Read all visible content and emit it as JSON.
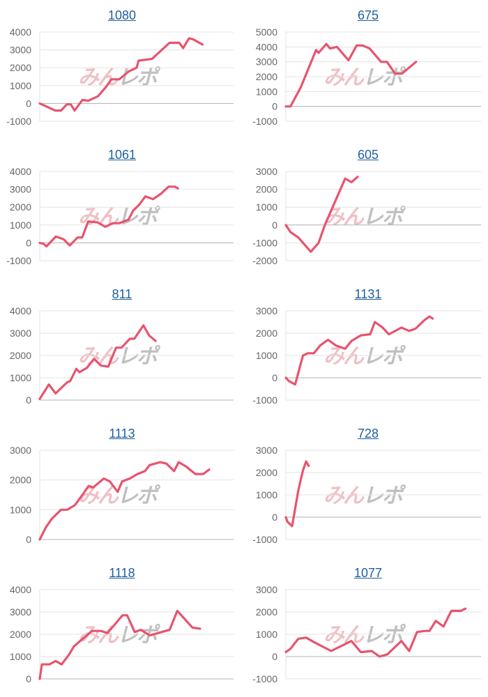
{
  "watermark": {
    "part1": "みん",
    "part2": "レポ"
  },
  "colors": {
    "line": "#e8536e",
    "title": "#1f5f9e",
    "grid": "#e3e3e3",
    "zero_line": "#b0b0b0",
    "tick_text": "#666666"
  },
  "chart_data": [
    {
      "type": "line",
      "title": "1080",
      "ylim": [
        -1000,
        4000
      ],
      "yticks": [
        "4000",
        "3000",
        "2000",
        "1000",
        "0",
        "-1000"
      ],
      "xlim": [
        0,
        100
      ],
      "x": [
        0,
        3,
        8,
        11,
        14,
        16,
        18,
        22,
        25,
        30,
        34,
        37,
        41,
        46,
        50,
        51,
        58,
        64,
        67,
        72,
        74,
        77,
        79,
        84
      ],
      "values": [
        0,
        -150,
        -400,
        -400,
        -50,
        -50,
        -400,
        200,
        150,
        400,
        900,
        1350,
        1350,
        1800,
        2000,
        2400,
        2500,
        3100,
        3400,
        3400,
        3100,
        3650,
        3600,
        3300
      ]
    },
    {
      "type": "line",
      "title": "675",
      "ylim": [
        -1000,
        5000
      ],
      "yticks": [
        "5000",
        "4000",
        "3000",
        "2000",
        "1000",
        "0",
        "-1000"
      ],
      "xlim": [
        0,
        100
      ],
      "x": [
        0,
        2.4,
        7.7,
        15.5,
        16.7,
        20.8,
        22.6,
        26.2,
        32.1,
        36.3,
        39.3,
        42.9,
        48.8,
        51.8,
        56,
        59.5,
        66.7
      ],
      "values": [
        0,
        0,
        1300,
        3800,
        3600,
        4200,
        3900,
        4000,
        3100,
        4100,
        4100,
        3900,
        3000,
        3000,
        2200,
        2200,
        3000
      ]
    },
    {
      "type": "line",
      "title": "1061",
      "ylim": [
        -1000,
        4000
      ],
      "yticks": [
        "4000",
        "3000",
        "2000",
        "1000",
        "0",
        "-1000"
      ],
      "xlim": [
        0,
        100
      ],
      "x": [
        0,
        1.9,
        3.5,
        8.3,
        12.3,
        15.5,
        19.5,
        21.9,
        25,
        29.8,
        33.8,
        37.8,
        41,
        45.8,
        48.2,
        51.4,
        54.5,
        58.5,
        62.5,
        66.5,
        69.7,
        71.3
      ],
      "values": [
        0,
        -50,
        -200,
        350,
        200,
        -150,
        300,
        300,
        1200,
        1150,
        900,
        1100,
        1100,
        1300,
        1800,
        2150,
        2600,
        2450,
        2750,
        3150,
        3150,
        3050
      ]
    },
    {
      "type": "line",
      "title": "605",
      "ylim": [
        -2000,
        3000
      ],
      "yticks": [
        "3000",
        "2000",
        "1000",
        "0",
        "-1000",
        "-2000"
      ],
      "xlim": [
        0,
        100
      ],
      "x": [
        0,
        2.4,
        6.4,
        12.8,
        16.8,
        20,
        30.4,
        33.6,
        36.8
      ],
      "values": [
        0,
        -400,
        -700,
        -1500,
        -1000,
        0,
        2600,
        2400,
        2700
      ]
    },
    {
      "type": "line",
      "title": "811",
      "ylim": [
        0,
        4000
      ],
      "yticks": [
        "4000",
        "3000",
        "2000",
        "1000",
        "0"
      ],
      "xlim": [
        0,
        100
      ],
      "x": [
        0,
        4.7,
        8.2,
        14.2,
        15.7,
        18.9,
        20.5,
        24.4,
        28,
        31.5,
        35.4,
        39.4,
        42.2,
        46.5,
        48.8,
        53.5,
        56.4,
        59.8
      ],
      "values": [
        50,
        700,
        300,
        800,
        850,
        1400,
        1250,
        1450,
        1850,
        1550,
        1500,
        2350,
        2350,
        2750,
        2750,
        3350,
        2900,
        2650
      ]
    },
    {
      "type": "line",
      "title": "1131",
      "ylim": [
        -1000,
        3000
      ],
      "yticks": [
        "3000",
        "2000",
        "1000",
        "0",
        "-1000"
      ],
      "xlim": [
        0,
        100
      ],
      "x": [
        0,
        1.6,
        4.8,
        8.8,
        11.2,
        14.4,
        17.6,
        21.6,
        25.6,
        30.4,
        33.6,
        38.4,
        43.2,
        45.6,
        49.6,
        52.8,
        59.2,
        63.2,
        66.4,
        71.2,
        73.6,
        75.2
      ],
      "values": [
        0,
        -150,
        -300,
        1000,
        1100,
        1100,
        1450,
        1700,
        1450,
        1300,
        1650,
        1900,
        1950,
        2500,
        2250,
        1950,
        2250,
        2100,
        2200,
        2600,
        2750,
        2650
      ]
    },
    {
      "type": "line",
      "title": "1113",
      "ylim": [
        0,
        3000
      ],
      "yticks": [
        "3000",
        "2000",
        "1000",
        "0"
      ],
      "xlim": [
        0,
        100
      ],
      "x": [
        0,
        3.1,
        6.3,
        11,
        14.2,
        18.1,
        22,
        25.2,
        27.6,
        33.1,
        36.2,
        40.2,
        42.5,
        46.5,
        50.4,
        54.3,
        56.7,
        62.2,
        65.4,
        69.3,
        71.7,
        75.6,
        80.3,
        84.3,
        87.4
      ],
      "values": [
        0,
        400,
        700,
        1000,
        1000,
        1150,
        1500,
        1800,
        1750,
        2050,
        1950,
        1600,
        1950,
        2050,
        2200,
        2300,
        2500,
        2600,
        2550,
        2300,
        2600,
        2450,
        2200,
        2200,
        2350
      ]
    },
    {
      "type": "line",
      "title": "728",
      "ylim": [
        -1000,
        3000
      ],
      "yticks": [
        "3000",
        "2000",
        "1000",
        "0",
        "-1000"
      ],
      "xlim": [
        0,
        100
      ],
      "x": [
        0,
        0.8,
        3.2,
        6.4,
        8.8,
        10.4,
        11.7
      ],
      "values": [
        0,
        -200,
        -400,
        1200,
        2100,
        2500,
        2300
      ]
    },
    {
      "type": "line",
      "title": "1118",
      "ylim": [
        0,
        4000
      ],
      "yticks": [
        "4000",
        "3000",
        "2000",
        "1000",
        "0"
      ],
      "xlim": [
        0,
        100
      ],
      "x": [
        0,
        1.1,
        5,
        8.2,
        11.3,
        15.2,
        17.6,
        21.5,
        27,
        31.7,
        34.9,
        38.8,
        42.7,
        45.1,
        49,
        52.1,
        56.8,
        67,
        71,
        74.1,
        78.8,
        82.7
      ],
      "values": [
        0,
        650,
        650,
        800,
        650,
        1100,
        1450,
        1750,
        2150,
        2150,
        2050,
        2450,
        2850,
        2850,
        2100,
        2200,
        1950,
        2200,
        3050,
        2750,
        2300,
        2250
      ]
    },
    {
      "type": "line",
      "title": "1077",
      "ylim": [
        -1000,
        3000
      ],
      "yticks": [
        "3000",
        "2000",
        "1000",
        "0",
        "-1000"
      ],
      "xlim": [
        0,
        100
      ],
      "x": [
        0,
        2.4,
        6.4,
        10.4,
        14.4,
        23.2,
        33.6,
        38.4,
        44,
        48,
        52,
        59.2,
        63.2,
        67.2,
        71.2,
        73.6,
        76.8,
        80.8,
        84.8,
        89.6,
        92
      ],
      "values": [
        200,
        350,
        800,
        850,
        650,
        250,
        700,
        200,
        250,
        0,
        100,
        700,
        250,
        1100,
        1150,
        1150,
        1600,
        1350,
        2050,
        2050,
        2150
      ]
    }
  ]
}
